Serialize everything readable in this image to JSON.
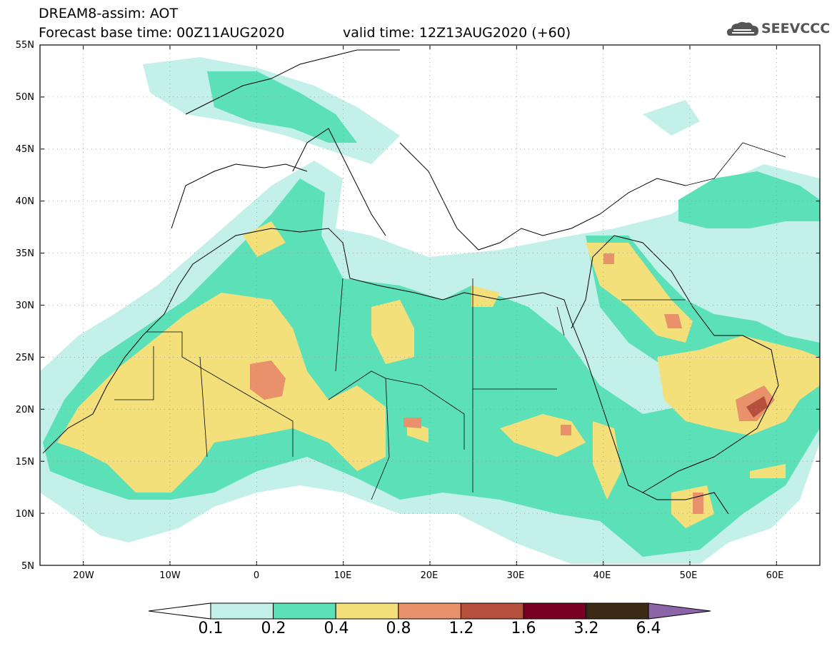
{
  "header": {
    "title_line1": "DREAM8-assim: AOT",
    "title_line2": "Forecast base time: 00Z11AUG2020",
    "valid_time": "valid time: 12Z13AUG2020 (+60)",
    "logo_text": "SEEVCCC",
    "logo_icon": "cloud-logo-icon"
  },
  "axes": {
    "lat_labels": [
      "55N",
      "50N",
      "45N",
      "40N",
      "35N",
      "30N",
      "25N",
      "20N",
      "15N",
      "10N",
      "5N"
    ],
    "lon_labels": [
      "20W",
      "10W",
      "0",
      "10E",
      "20E",
      "30E",
      "40E",
      "50E",
      "60E"
    ]
  },
  "map": {
    "region": "North Africa, Mediterranean and Middle East",
    "lon_range": [
      -25,
      65
    ],
    "lat_range": [
      5,
      55
    ],
    "fields": "aerosol optical thickness"
  },
  "colorbar": {
    "labels": [
      "0.1",
      "0.2",
      "0.4",
      "0.8",
      "1.2",
      "1.6",
      "3.2",
      "6.4"
    ],
    "colors": [
      "#ffffff",
      "#c4f0ea",
      "#5ce0b8",
      "#f4e07a",
      "#e8916a",
      "#b4503c",
      "#780020",
      "#3c2a14",
      "#8c64a8"
    ]
  }
}
